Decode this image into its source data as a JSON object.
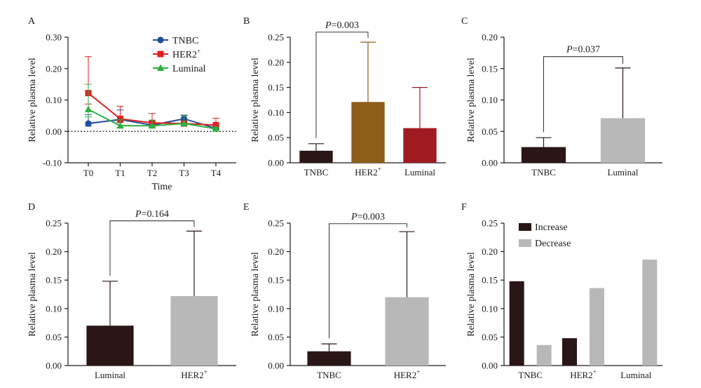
{
  "colors": {
    "axis": "#1a1a1a",
    "tnbc_line": "#1f4e9c",
    "her2_line": "#e02020",
    "luminal_line": "#2db040",
    "tnbc_bar": "#2a1616",
    "her2_bar": "#8b5e1a",
    "luminal_bar": "#a01a22",
    "gray_bar": "#b8b8b8",
    "dark_bar": "#2a1616"
  },
  "chart_data": [
    {
      "panel": "A",
      "type": "line",
      "xlabel": "Time",
      "ylabel": "Relative plasma level",
      "ylim": [
        -0.1,
        0.3
      ],
      "yticks": [
        "-0.10",
        "0.00",
        "0.10",
        "0.20",
        "0.30"
      ],
      "categories": [
        "T0",
        "T1",
        "T2",
        "T3",
        "T4"
      ],
      "reference_line": 0,
      "legend_position": "top-right",
      "series": [
        {
          "name": "TNBC",
          "sup": "",
          "marker": "circle",
          "color_key": "tnbc_line",
          "values": [
            0.025,
            0.038,
            0.02,
            0.04,
            0.01
          ],
          "err": [
            0.028,
            0.03,
            0.012,
            0.012,
            0.008
          ]
        },
        {
          "name": "HER2",
          "sup": "+",
          "marker": "square",
          "color_key": "her2_line",
          "values": [
            0.122,
            0.04,
            0.027,
            0.025,
            0.02
          ],
          "err": [
            0.116,
            0.04,
            0.03,
            0.025,
            0.022
          ]
        },
        {
          "name": "Luminal",
          "sup": "",
          "marker": "triangle",
          "color_key": "luminal_line",
          "values": [
            0.07,
            0.018,
            0.018,
            0.025,
            0.008
          ],
          "err": [
            0.08,
            0.02,
            0.018,
            0.025,
            0.005
          ]
        }
      ]
    },
    {
      "panel": "B",
      "type": "bar",
      "ylabel": "Relative plasma level",
      "ylim": [
        0,
        0.25
      ],
      "yticks": [
        "0.00",
        "0.05",
        "0.10",
        "0.15",
        "0.20",
        "0.25"
      ],
      "categories": [
        {
          "label": "TNBC",
          "sup": ""
        },
        {
          "label": "HER2",
          "sup": "+"
        },
        {
          "label": "Luminal",
          "sup": ""
        }
      ],
      "values": [
        0.024,
        0.121,
        0.069
      ],
      "err": [
        0.014,
        0.119,
        0.081
      ],
      "bar_color_keys": [
        "tnbc_bar",
        "her2_bar",
        "luminal_bar"
      ],
      "err_color_keys": [
        "tnbc_bar",
        "her2_bar",
        "luminal_bar"
      ],
      "bracket": {
        "from": 0,
        "to": 1,
        "y": 0.26,
        "label_italic": "P",
        "label_value": "=0.003"
      }
    },
    {
      "panel": "C",
      "type": "bar",
      "ylabel": "Relative plasma level",
      "ylim": [
        0,
        0.2
      ],
      "yticks": [
        "0.00",
        "0.05",
        "0.10",
        "0.15",
        "0.20"
      ],
      "categories": [
        {
          "label": "TNBC",
          "sup": ""
        },
        {
          "label": "Luminal",
          "sup": ""
        }
      ],
      "values": [
        0.025,
        0.071
      ],
      "err": [
        0.015,
        0.08
      ],
      "bar_color_keys": [
        "dark_bar",
        "gray_bar"
      ],
      "err_color_keys": [
        "dark_bar",
        "dark_bar"
      ],
      "bracket": {
        "from": 0,
        "to": 1,
        "y": 0.169,
        "label_italic": "P",
        "label_value": "=0.037"
      }
    },
    {
      "panel": "D",
      "type": "bar",
      "ylabel": "Relative plasma level",
      "ylim": [
        0,
        0.25
      ],
      "yticks": [
        "0.00",
        "0.05",
        "0.10",
        "0.15",
        "0.20",
        "0.25"
      ],
      "categories": [
        {
          "label": "Luminal",
          "sup": ""
        },
        {
          "label": "HER2",
          "sup": "+"
        }
      ],
      "values": [
        0.07,
        0.122
      ],
      "err": [
        0.078,
        0.114
      ],
      "bar_color_keys": [
        "dark_bar",
        "gray_bar"
      ],
      "err_color_keys": [
        "dark_bar",
        "dark_bar"
      ],
      "bracket": {
        "from": 0,
        "to": 1,
        "y": 0.254,
        "label_italic": "P",
        "label_value": "=0.164"
      }
    },
    {
      "panel": "E",
      "type": "bar",
      "ylabel": "Relative plasma level",
      "ylim": [
        0,
        0.25
      ],
      "yticks": [
        "0.00",
        "0.05",
        "0.10",
        "0.15",
        "0.20",
        "0.25"
      ],
      "categories": [
        {
          "label": "TNBC",
          "sup": ""
        },
        {
          "label": "HER2",
          "sup": "+"
        }
      ],
      "values": [
        0.025,
        0.12
      ],
      "err": [
        0.013,
        0.115
      ],
      "bar_color_keys": [
        "dark_bar",
        "gray_bar"
      ],
      "err_color_keys": [
        "dark_bar",
        "dark_bar"
      ],
      "bracket": {
        "from": 0,
        "to": 1,
        "y": 0.249,
        "label_italic": "P",
        "label_value": "=0.003"
      }
    },
    {
      "panel": "F",
      "type": "bar",
      "ylabel": "Relative plasma level",
      "ylim": [
        0,
        0.25
      ],
      "yticks": [
        "0.00",
        "0.05",
        "0.10",
        "0.15",
        "0.20",
        "0.25"
      ],
      "categories": [
        {
          "label": "TNBC",
          "sup": ""
        },
        {
          "label": "HER2",
          "sup": "+"
        },
        {
          "label": "Luminal",
          "sup": ""
        }
      ],
      "legend_position": "top-left",
      "series": [
        {
          "name": "Increase",
          "color_key": "dark_bar",
          "values": [
            0.148,
            0.048,
            0
          ]
        },
        {
          "name": "Decrease",
          "color_key": "gray_bar",
          "values": [
            0.036,
            0.136,
            0.186
          ]
        }
      ]
    }
  ]
}
